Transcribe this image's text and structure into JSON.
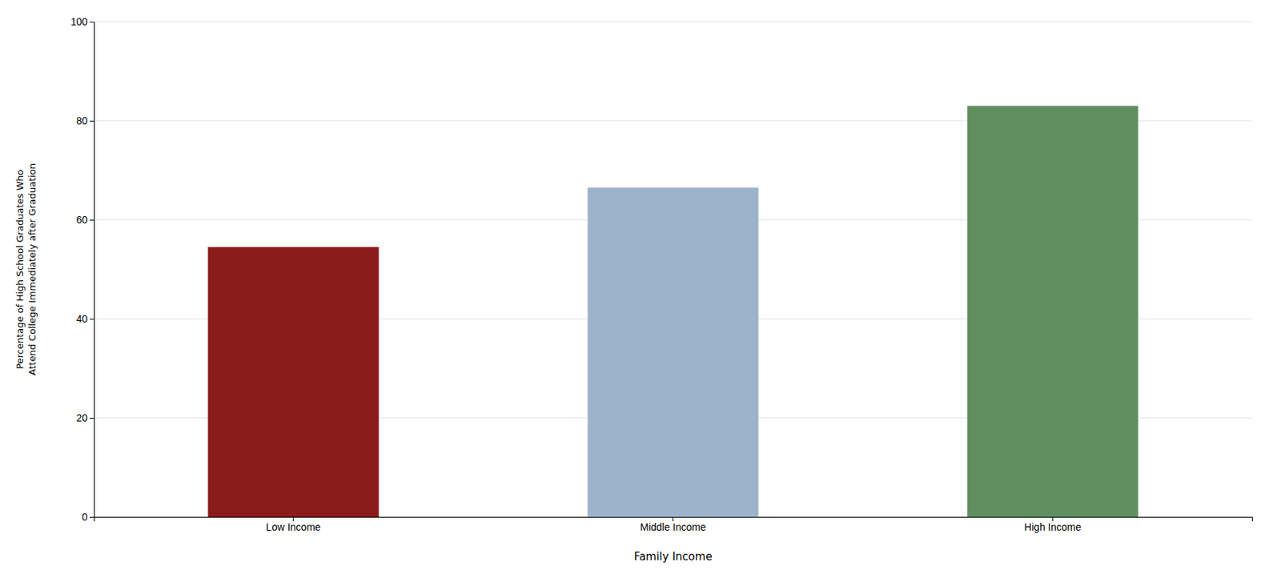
{
  "chart_data": {
    "type": "bar",
    "categories": [
      "Low Income",
      "Middle Income",
      "High Income"
    ],
    "values": [
      54.5,
      66.5,
      83.0
    ],
    "colors": [
      "#8B1A1A",
      "#9DB3CC",
      "#5F8F5F"
    ],
    "xlabel": "Family Income",
    "ylabel": "Percentage of High School Graduates Who\nAttend College Immediately after Graduation",
    "ylim": [
      0,
      100
    ],
    "yticks": [
      0,
      20,
      40,
      60,
      80,
      100
    ],
    "grid": true
  }
}
